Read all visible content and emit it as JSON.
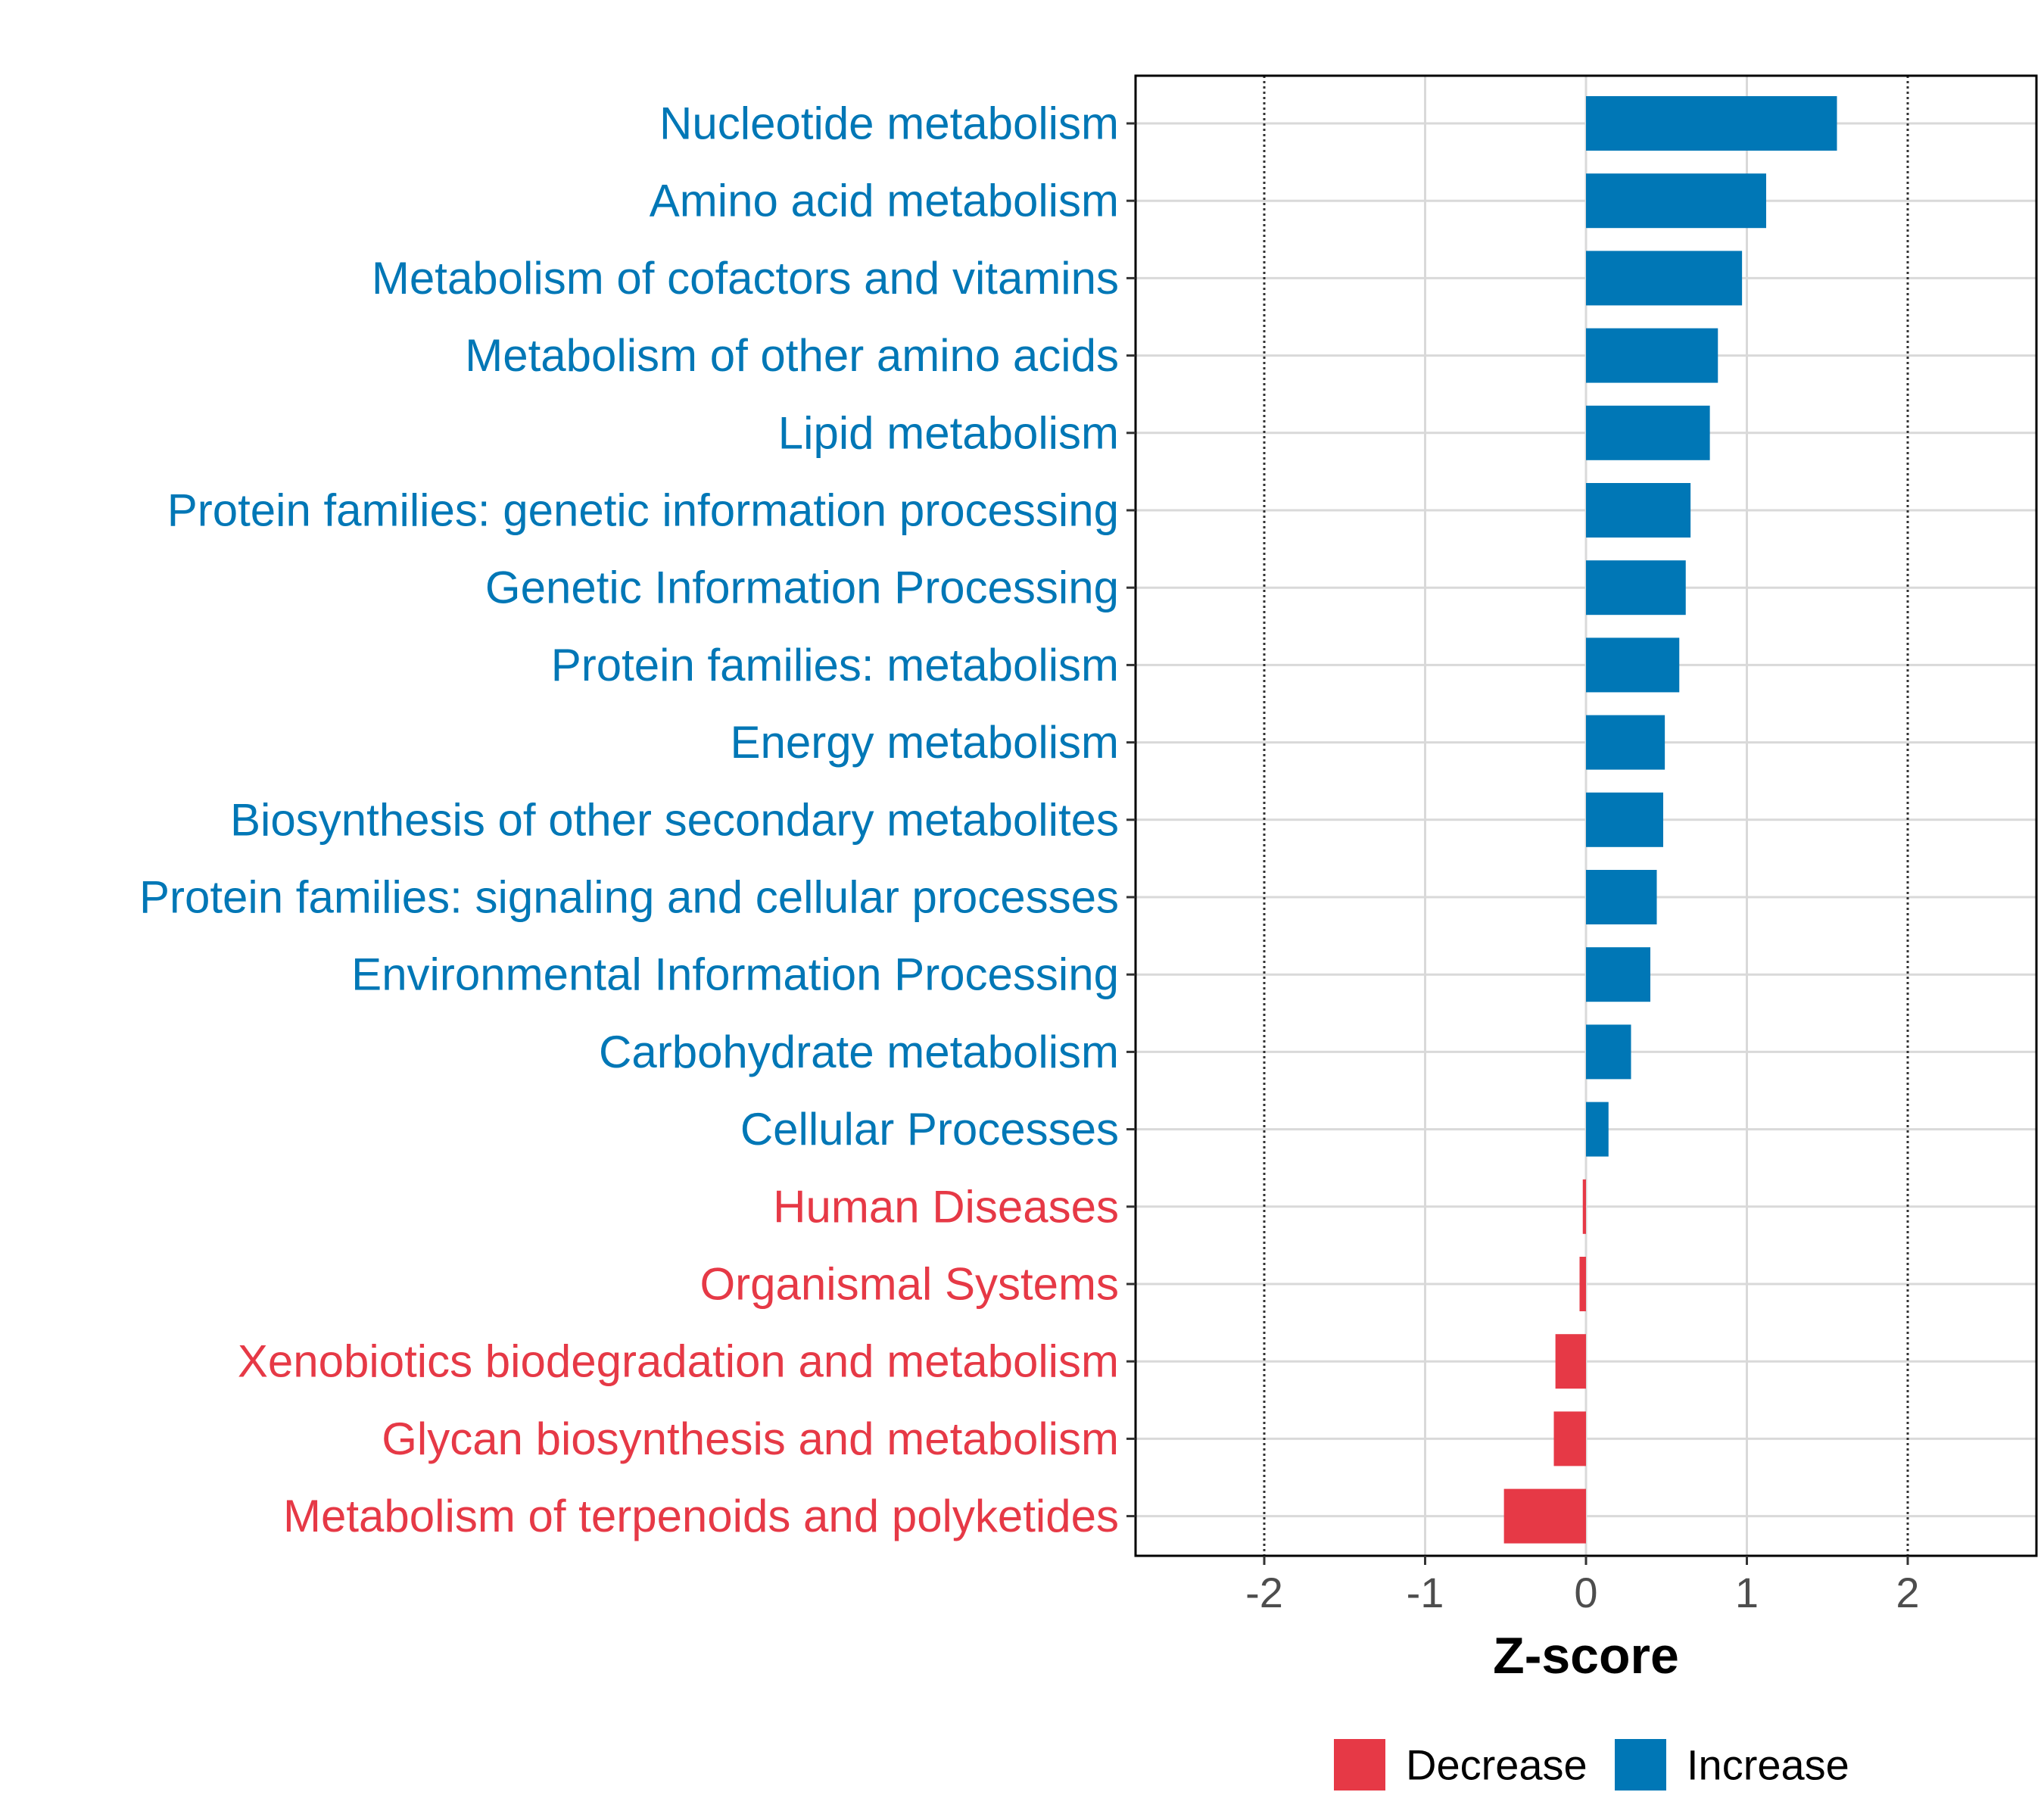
{
  "chart_data": {
    "type": "bar",
    "orientation": "horizontal",
    "xlabel": "Z-score",
    "xlim": [
      -2.8,
      2.8
    ],
    "xticks": [
      -2,
      -1,
      0,
      1,
      2
    ],
    "xtick_labels": [
      "-2",
      "-1",
      "0",
      "1",
      "2"
    ],
    "reference_lines": [
      -2,
      2
    ],
    "categories": [
      "Nucleotide metabolism",
      "Amino acid metabolism",
      "Metabolism of cofactors and vitamins",
      "Metabolism of other amino acids",
      "Lipid metabolism",
      "Protein families: genetic information processing",
      "Genetic Information Processing",
      "Protein families: metabolism",
      "Energy metabolism",
      "Biosynthesis of other secondary metabolites",
      "Protein families: signaling and cellular processes",
      "Environmental Information Processing",
      "Carbohydrate metabolism",
      "Cellular Processes",
      "Human Diseases",
      "Organismal Systems",
      "Xenobiotics biodegradation and metabolism",
      "Glycan biosynthesis and metabolism",
      "Metabolism of terpenoids and polyketides"
    ],
    "values": [
      1.56,
      1.12,
      0.97,
      0.82,
      0.77,
      0.65,
      0.62,
      0.58,
      0.49,
      0.48,
      0.44,
      0.4,
      0.28,
      0.14,
      -0.02,
      -0.04,
      -0.19,
      -0.2,
      -0.51
    ],
    "groups": [
      "Increase",
      "Increase",
      "Increase",
      "Increase",
      "Increase",
      "Increase",
      "Increase",
      "Increase",
      "Increase",
      "Increase",
      "Increase",
      "Increase",
      "Increase",
      "Increase",
      "Decrease",
      "Decrease",
      "Decrease",
      "Decrease",
      "Decrease"
    ],
    "legend": [
      {
        "label": "Decrease",
        "color": "#E63946"
      },
      {
        "label": "Increase",
        "color": "#0077B6"
      }
    ],
    "legend_position": "bottom",
    "colors": {
      "Increase": "#0077B6",
      "Decrease": "#E63946"
    }
  }
}
